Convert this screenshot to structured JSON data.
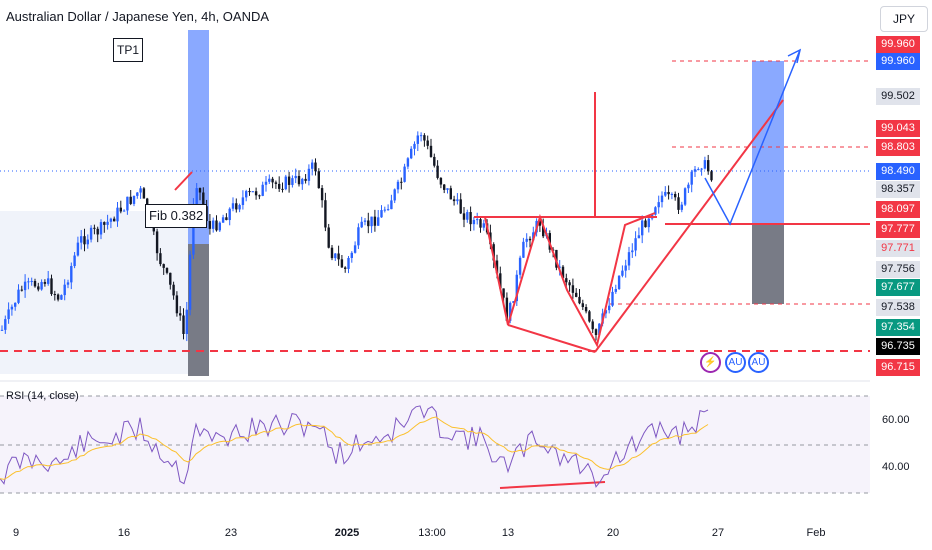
{
  "header": {
    "title": "Australian Dollar / Japanese Yen, 4h, OANDA"
  },
  "currency_button": {
    "label": "JPY"
  },
  "annotations": {
    "tp1": "TP1",
    "fib": "Fib 0.382"
  },
  "price_tags": [
    {
      "label": "99.960",
      "bg": "#f23645",
      "fg": "#ffffff"
    },
    {
      "label": "99.960",
      "bg": "#2962ff",
      "fg": "#ffffff"
    },
    {
      "label": "99.502",
      "bg": "#e0e3eb",
      "fg": "#131722"
    },
    {
      "label": "99.043",
      "bg": "#f23645",
      "fg": "#ffffff"
    },
    {
      "label": "98.803",
      "bg": "#f23645",
      "fg": "#ffffff"
    },
    {
      "label": "98.490",
      "bg": "#2962ff",
      "fg": "#ffffff"
    },
    {
      "label": "98.357",
      "bg": "#e0e3eb",
      "fg": "#131722"
    },
    {
      "label": "98.097",
      "bg": "#f23645",
      "fg": "#ffffff"
    },
    {
      "label": "97.777",
      "bg": "#f23645",
      "fg": "#ffffff"
    },
    {
      "label": "97.771",
      "bg": "#e0e3eb",
      "fg": "#f23645"
    },
    {
      "label": "97.756",
      "bg": "#e0e3eb",
      "fg": "#131722"
    },
    {
      "label": "97.677",
      "bg": "#089981",
      "fg": "#ffffff"
    },
    {
      "label": "97.538",
      "bg": "#e0e3eb",
      "fg": "#131722"
    },
    {
      "label": "97.354",
      "bg": "#089981",
      "fg": "#ffffff"
    },
    {
      "label": "96.735",
      "bg": "#000000",
      "fg": "#ffffff"
    },
    {
      "label": "96.715",
      "bg": "#f23645",
      "fg": "#ffffff"
    }
  ],
  "rsi": {
    "label": "RSI (14, close)",
    "ticks": [
      "60.00",
      "40.00"
    ]
  },
  "x_axis": [
    {
      "label": "9",
      "bold": false
    },
    {
      "label": "16",
      "bold": false
    },
    {
      "label": "23",
      "bold": false
    },
    {
      "label": "2025",
      "bold": true
    },
    {
      "label": "13:00",
      "bold": false
    },
    {
      "label": "13",
      "bold": false
    },
    {
      "label": "20",
      "bold": false
    },
    {
      "label": "27",
      "bold": false
    },
    {
      "label": "Feb",
      "bold": false
    }
  ],
  "events": [
    {
      "icon": "lightning-icon",
      "glyph": "⚡",
      "color": "#9c27b0"
    },
    {
      "icon": "au-flag-icon",
      "glyph": "AU",
      "color": "#2962ff"
    },
    {
      "icon": "au-flag-icon",
      "glyph": "AU",
      "color": "#2962ff"
    }
  ],
  "colors": {
    "up": "#2962ff",
    "down": "#131722",
    "drawing_red": "#f23645",
    "drawing_blue": "#2962ff",
    "rsi_line": "#7e57c2",
    "rsi_ma": "#fbc02d"
  }
}
